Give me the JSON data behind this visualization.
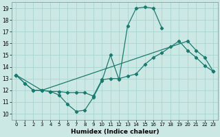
{
  "title": "",
  "xlabel": "Humidex (Indice chaleur)",
  "bg_color": "#cce8e4",
  "grid_color": "#aad4d0",
  "line_color": "#1a7a6e",
  "xlim": [
    -0.5,
    23.5
  ],
  "ylim": [
    9.5,
    19.5
  ],
  "xticks": [
    0,
    1,
    2,
    3,
    4,
    5,
    6,
    7,
    8,
    9,
    10,
    11,
    12,
    13,
    14,
    15,
    16,
    17,
    18,
    19,
    20,
    21,
    22,
    23
  ],
  "yticks": [
    10,
    11,
    12,
    13,
    14,
    15,
    16,
    17,
    18,
    19
  ],
  "line1_x": [
    0,
    1,
    2,
    3,
    4,
    5,
    6,
    7,
    8,
    9,
    10,
    11,
    12,
    13,
    14,
    15,
    16,
    17
  ],
  "line1_y": [
    13.3,
    12.6,
    12.0,
    12.0,
    11.9,
    11.6,
    10.8,
    10.2,
    10.3,
    11.4,
    12.8,
    15.0,
    12.9,
    17.5,
    19.0,
    19.1,
    19.0,
    17.3
  ],
  "line2_x": [
    0,
    1,
    2,
    3,
    4,
    5,
    6,
    7,
    8,
    9,
    10,
    11,
    12,
    13,
    14,
    15,
    16,
    17,
    18,
    19,
    20,
    21,
    22,
    23
  ],
  "line2_y": [
    13.3,
    12.6,
    12.0,
    12.0,
    11.9,
    11.9,
    11.8,
    11.8,
    11.8,
    11.5,
    12.9,
    13.0,
    13.0,
    13.2,
    13.4,
    14.2,
    14.8,
    15.2,
    15.7,
    16.2,
    15.4,
    14.8,
    14.1,
    13.6
  ],
  "line3_x": [
    0,
    3,
    20,
    21,
    22,
    23
  ],
  "line3_y": [
    13.3,
    12.0,
    16.2,
    15.4,
    14.8,
    13.6
  ]
}
